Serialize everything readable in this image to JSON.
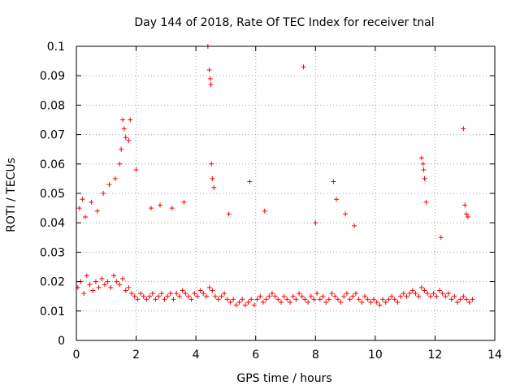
{
  "chart_data": {
    "type": "scatter",
    "title": "Day 144 of 2018, Rate Of TEC Index for receiver tnal",
    "xlabel": "GPS time / hours",
    "ylabel": "ROTI / TECUs",
    "xlim": [
      0,
      14
    ],
    "ylim": [
      0,
      0.1
    ],
    "x_ticks": [
      "0",
      "2",
      "4",
      "6",
      "8",
      "10",
      "12",
      "14"
    ],
    "y_ticks": [
      "0",
      "0.01",
      "0.02",
      "0.03",
      "0.04",
      "0.05",
      "0.06",
      "0.07",
      "0.08",
      "0.09",
      "0.1"
    ],
    "grid": true,
    "marker": "+",
    "color": "#ff0000",
    "series": [
      {
        "name": "ROTI",
        "x": [
          0.05,
          0.15,
          0.25,
          0.35,
          0.45,
          0.55,
          0.65,
          0.75,
          0.85,
          0.95,
          1.05,
          1.15,
          1.25,
          1.35,
          1.45,
          1.55,
          1.65,
          1.75,
          1.85,
          1.95,
          2.05,
          2.15,
          2.25,
          2.35,
          2.45,
          2.55,
          2.65,
          2.75,
          2.85,
          2.95,
          3.05,
          3.15,
          3.25,
          3.35,
          3.45,
          3.55,
          3.65,
          3.75,
          3.85,
          3.95,
          4.05,
          4.15,
          4.25,
          4.35,
          4.45,
          4.55,
          4.65,
          4.75,
          4.85,
          4.95,
          5.05,
          5.15,
          5.25,
          5.35,
          5.45,
          5.55,
          5.65,
          5.75,
          5.85,
          5.95,
          6.05,
          6.15,
          6.25,
          6.35,
          6.45,
          6.55,
          6.65,
          6.75,
          6.85,
          6.95,
          7.05,
          7.15,
          7.25,
          7.35,
          7.45,
          7.55,
          7.65,
          7.75,
          7.85,
          7.95,
          8.05,
          8.15,
          8.25,
          8.35,
          8.45,
          8.55,
          8.65,
          8.75,
          8.85,
          8.95,
          9.05,
          9.15,
          9.25,
          9.35,
          9.45,
          9.55,
          9.65,
          9.75,
          9.85,
          9.95,
          10.05,
          10.15,
          10.25,
          10.35,
          10.45,
          10.55,
          10.65,
          10.75,
          10.85,
          10.95,
          11.05,
          11.15,
          11.25,
          11.35,
          11.45,
          11.55,
          11.65,
          11.75,
          11.85,
          11.95,
          12.05,
          12.15,
          12.25,
          12.35,
          12.45,
          12.55,
          12.65,
          12.75,
          12.85,
          12.95,
          13.05,
          13.15,
          13.25,
          0.1,
          0.2,
          0.3,
          0.5,
          0.7,
          0.9,
          1.1,
          1.3,
          1.45,
          1.5,
          1.55,
          1.6,
          1.65,
          1.75,
          1.8,
          2.0,
          2.5,
          2.8,
          3.2,
          3.6,
          4.4,
          4.45,
          4.48,
          4.5,
          4.52,
          4.55,
          4.6,
          5.1,
          5.8,
          6.3,
          7.6,
          8.0,
          8.6,
          8.7,
          9.0,
          9.3,
          11.55,
          11.6,
          11.62,
          11.65,
          11.7,
          12.2,
          12.95,
          13.0,
          13.05,
          13.1
        ],
        "y": [
          0.018,
          0.02,
          0.016,
          0.022,
          0.019,
          0.017,
          0.02,
          0.018,
          0.021,
          0.019,
          0.02,
          0.018,
          0.022,
          0.02,
          0.019,
          0.021,
          0.017,
          0.018,
          0.016,
          0.015,
          0.014,
          0.016,
          0.015,
          0.014,
          0.015,
          0.016,
          0.014,
          0.015,
          0.016,
          0.014,
          0.015,
          0.016,
          0.014,
          0.016,
          0.015,
          0.017,
          0.016,
          0.015,
          0.014,
          0.016,
          0.015,
          0.017,
          0.016,
          0.015,
          0.018,
          0.017,
          0.015,
          0.014,
          0.015,
          0.016,
          0.014,
          0.013,
          0.014,
          0.012,
          0.013,
          0.014,
          0.012,
          0.013,
          0.014,
          0.012,
          0.014,
          0.015,
          0.013,
          0.014,
          0.015,
          0.016,
          0.015,
          0.014,
          0.013,
          0.015,
          0.014,
          0.013,
          0.015,
          0.014,
          0.016,
          0.015,
          0.014,
          0.013,
          0.015,
          0.014,
          0.016,
          0.014,
          0.015,
          0.013,
          0.014,
          0.016,
          0.015,
          0.014,
          0.013,
          0.015,
          0.016,
          0.014,
          0.015,
          0.016,
          0.014,
          0.013,
          0.015,
          0.014,
          0.013,
          0.014,
          0.013,
          0.012,
          0.014,
          0.013,
          0.014,
          0.015,
          0.014,
          0.013,
          0.015,
          0.016,
          0.015,
          0.016,
          0.017,
          0.016,
          0.015,
          0.018,
          0.017,
          0.016,
          0.015,
          0.016,
          0.015,
          0.017,
          0.016,
          0.015,
          0.016,
          0.014,
          0.015,
          0.013,
          0.014,
          0.015,
          0.014,
          0.013,
          0.014,
          0.045,
          0.048,
          0.042,
          0.047,
          0.044,
          0.05,
          0.053,
          0.055,
          0.06,
          0.065,
          0.075,
          0.072,
          0.069,
          0.068,
          0.075,
          0.058,
          0.045,
          0.046,
          0.045,
          0.047,
          0.1,
          0.092,
          0.089,
          0.087,
          0.06,
          0.055,
          0.052,
          0.043,
          0.054,
          0.044,
          0.093,
          0.04,
          0.054,
          0.048,
          0.043,
          0.039,
          0.062,
          0.06,
          0.058,
          0.055,
          0.047,
          0.035,
          0.072,
          0.046,
          0.043,
          0.042
        ]
      }
    ]
  }
}
